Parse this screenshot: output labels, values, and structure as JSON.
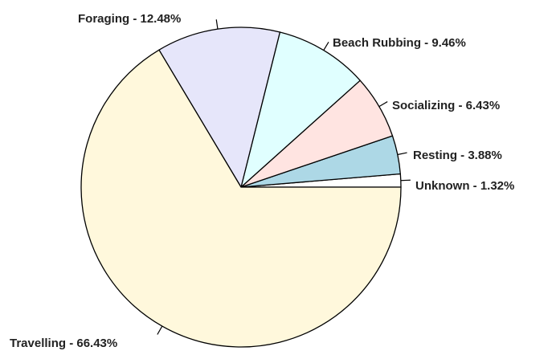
{
  "chart_data": {
    "type": "pie",
    "start_angle_deg": 0,
    "direction": "counterclockwise",
    "slices": [
      {
        "label": "Unknown - 1.32%",
        "value": 1.32,
        "color": "#ffffff"
      },
      {
        "label": "Resting - 3.88%",
        "value": 3.88,
        "color": "#add8e6"
      },
      {
        "label": "Socializing - 6.43%",
        "value": 6.43,
        "color": "#ffe4e1"
      },
      {
        "label": "Beach Rubbing - 9.46%",
        "value": 9.46,
        "color": "#e0ffff"
      },
      {
        "label": "Foraging - 12.48%",
        "value": 12.48,
        "color": "#e6e6fa"
      },
      {
        "label": "Travelling - 66.43%",
        "value": 66.43,
        "color": "#fff8dc"
      }
    ]
  }
}
